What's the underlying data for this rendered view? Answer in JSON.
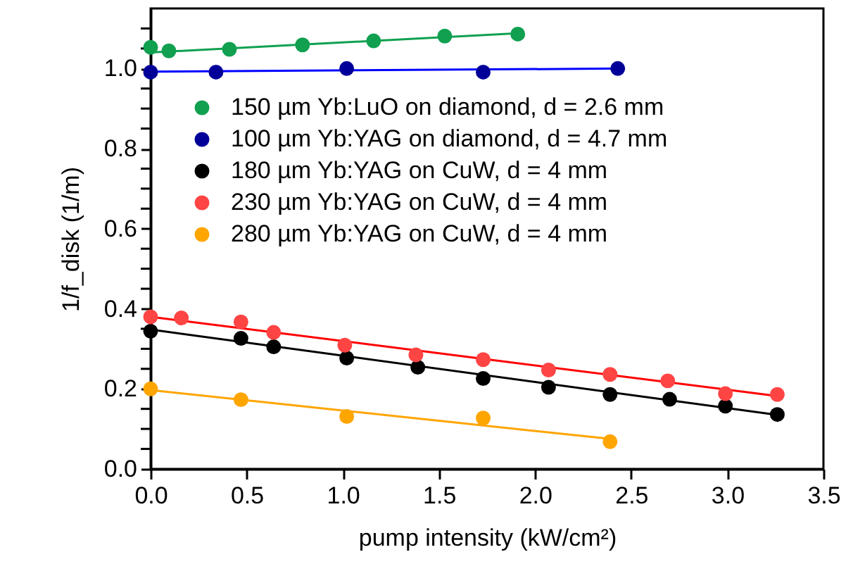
{
  "chart_data": {
    "type": "scatter",
    "xlabel": "pump intensity (kW/cm²)",
    "ylabel": "1/f_disk (1/m)",
    "xlim": [
      0,
      3.5
    ],
    "ylim": [
      0,
      1.15
    ],
    "xticks": [
      {
        "value": 0,
        "label": "0.0"
      },
      {
        "value": 0.5,
        "label": "0.5"
      },
      {
        "value": 1,
        "label": "1.0"
      },
      {
        "value": 1.5,
        "label": "1.5"
      },
      {
        "value": 2,
        "label": "2.0"
      },
      {
        "value": 2.5,
        "label": "2.5"
      },
      {
        "value": 3,
        "label": "3.0"
      },
      {
        "value": 3.5,
        "label": "3.5"
      }
    ],
    "yticks": [
      {
        "value": 0,
        "label": "0.0"
      },
      {
        "value": 0.05,
        "label": null
      },
      {
        "value": 0.1,
        "label": null
      },
      {
        "value": 0.15,
        "label": null
      },
      {
        "value": 0.2,
        "label": "0.2"
      },
      {
        "value": 0.25,
        "label": null
      },
      {
        "value": 0.3,
        "label": null
      },
      {
        "value": 0.35,
        "label": null
      },
      {
        "value": 0.4,
        "label": "0.4"
      },
      {
        "value": 0.45,
        "label": null
      },
      {
        "value": 0.5,
        "label": null
      },
      {
        "value": 0.55,
        "label": null
      },
      {
        "value": 0.6,
        "label": "0.6"
      },
      {
        "value": 0.65,
        "label": null
      },
      {
        "value": 0.7,
        "label": null
      },
      {
        "value": 0.75,
        "label": null
      },
      {
        "value": 0.8,
        "label": "0.8"
      },
      {
        "value": 0.85,
        "label": null
      },
      {
        "value": 0.9,
        "label": null
      },
      {
        "value": 0.95,
        "label": null
      },
      {
        "value": 1.0,
        "label": "1.0"
      },
      {
        "value": 1.05,
        "label": null
      },
      {
        "value": 1.1,
        "label": null
      }
    ],
    "grid": false,
    "legend": "top left",
    "marker": "circle",
    "series": [
      {
        "name": "150 µm Yb:LuO on diamond, d = 2.6 mm",
        "color": "#10a050",
        "x": [
          0,
          0.095,
          0.41,
          0.79,
          1.16,
          1.53,
          1.91
        ],
        "values": [
          1.053,
          1.044,
          1.048,
          1.059,
          1.069,
          1.081,
          1.086
        ]
      },
      {
        "name": "100 µm Yb:YAG on diamond, d = 4.7 mm",
        "color": "#000099",
        "x": [
          0,
          0.34,
          1.02,
          1.73,
          2.43
        ],
        "values": [
          0.991,
          0.991,
          1.0,
          0.991,
          1.0
        ]
      },
      {
        "name": "180 µm Yb:YAG on CuW, d = 4 mm",
        "color": "#000000",
        "x": [
          0,
          0.47,
          0.64,
          1.02,
          1.39,
          1.73,
          2.07,
          2.39,
          2.7,
          2.99,
          3.26
        ],
        "values": [
          0.344,
          0.326,
          0.305,
          0.277,
          0.254,
          0.226,
          0.204,
          0.186,
          0.174,
          0.157,
          0.136
        ]
      },
      {
        "name": "230 µm Yb:YAG on CuW, d = 4 mm",
        "color": "#ff4444",
        "x": [
          0,
          0.16,
          0.47,
          0.64,
          1.01,
          1.38,
          1.73,
          2.07,
          2.39,
          2.69,
          2.99,
          3.26
        ],
        "values": [
          0.38,
          0.377,
          0.367,
          0.341,
          0.309,
          0.285,
          0.273,
          0.247,
          0.236,
          0.22,
          0.188,
          0.186
        ]
      },
      {
        "name": "280 µm Yb:YAG on CuW, d = 4 mm",
        "color": "#ffa500",
        "x": [
          0,
          0.47,
          1.02,
          1.73,
          2.39
        ],
        "values": [
          0.2,
          0.173,
          0.131,
          0.127,
          0.068
        ]
      },
      {
        "type": "line",
        "marker": "none",
        "line_style": "solid",
        "color": "#10a050",
        "x": [
          0,
          1.91
        ],
        "values": [
          1.04,
          1.088
        ]
      },
      {
        "type": "line",
        "marker": "none",
        "line_style": "solid",
        "color": "#0000ff",
        "x": [
          0,
          2.45
        ],
        "values": [
          0.992,
          1.0
        ]
      },
      {
        "type": "line",
        "marker": "none",
        "line_style": "solid",
        "color": "#000000",
        "x": [
          0,
          3.26
        ],
        "values": [
          0.348,
          0.135
        ]
      },
      {
        "type": "line",
        "marker": "none",
        "line_style": "solid",
        "color": "#ff0000",
        "x": [
          0,
          3.26
        ],
        "values": [
          0.38,
          0.182
        ]
      },
      {
        "type": "line",
        "marker": "none",
        "line_style": "solid",
        "color": "#ffa500",
        "x": [
          0,
          2.39
        ],
        "values": [
          0.197,
          0.075
        ]
      }
    ]
  }
}
